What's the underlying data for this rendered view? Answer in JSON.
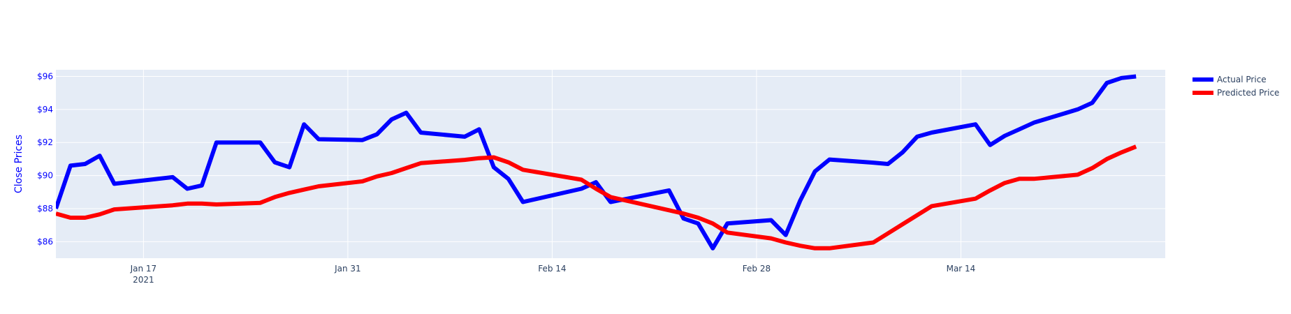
{
  "chart_data": {
    "type": "line",
    "ylabel": "Close Prices",
    "ylim": [
      85.0,
      96.4
    ],
    "x_range": [
      "2021-01-11",
      "2021-03-28"
    ],
    "x_ticks": [
      {
        "date": "2021-01-17",
        "label": "Jan 17",
        "sublabel": "2021"
      },
      {
        "date": "2021-01-31",
        "label": "Jan 31",
        "sublabel": ""
      },
      {
        "date": "2021-02-14",
        "label": "Feb 14",
        "sublabel": ""
      },
      {
        "date": "2021-02-28",
        "label": "Feb 28",
        "sublabel": ""
      },
      {
        "date": "2021-03-14",
        "label": "Mar 14",
        "sublabel": ""
      }
    ],
    "y_ticks": [
      {
        "value": 86,
        "label": "$86"
      },
      {
        "value": 88,
        "label": "$88"
      },
      {
        "value": 90,
        "label": "$90"
      },
      {
        "value": 92,
        "label": "$92"
      },
      {
        "value": 94,
        "label": "$94"
      },
      {
        "value": 96,
        "label": "$96"
      }
    ],
    "grid": true,
    "legend_position": "top-right",
    "series": [
      {
        "name": "Actual Price",
        "color": "#0000ff",
        "x": [
          "2021-01-11",
          "2021-01-12",
          "2021-01-13",
          "2021-01-14",
          "2021-01-15",
          "2021-01-19",
          "2021-01-20",
          "2021-01-21",
          "2021-01-22",
          "2021-01-25",
          "2021-01-26",
          "2021-01-27",
          "2021-01-28",
          "2021-01-29",
          "2021-02-01",
          "2021-02-02",
          "2021-02-03",
          "2021-02-04",
          "2021-02-05",
          "2021-02-08",
          "2021-02-09",
          "2021-02-10",
          "2021-02-11",
          "2021-02-12",
          "2021-02-16",
          "2021-02-17",
          "2021-02-18",
          "2021-02-22",
          "2021-02-23",
          "2021-02-24",
          "2021-02-25",
          "2021-02-26",
          "2021-03-01",
          "2021-03-02",
          "2021-03-03",
          "2021-03-04",
          "2021-03-05",
          "2021-03-08",
          "2021-03-09",
          "2021-03-10",
          "2021-03-11",
          "2021-03-12",
          "2021-03-15",
          "2021-03-16",
          "2021-03-17",
          "2021-03-18",
          "2021-03-19",
          "2021-03-22",
          "2021-03-23",
          "2021-03-24",
          "2021-03-25",
          "2021-03-26"
        ],
        "y": [
          88.0,
          90.6,
          90.7,
          91.2,
          89.5,
          89.9,
          89.2,
          89.4,
          92.0,
          92.0,
          90.8,
          90.5,
          93.1,
          92.2,
          92.15,
          92.5,
          93.4,
          93.8,
          92.6,
          92.35,
          92.8,
          90.5,
          89.8,
          88.4,
          89.2,
          89.6,
          88.4,
          89.1,
          87.4,
          87.1,
          85.6,
          87.1,
          87.3,
          86.4,
          88.5,
          90.25,
          90.97,
          90.78,
          90.7,
          91.4,
          92.35,
          92.6,
          93.1,
          91.85,
          92.4,
          92.8,
          93.2,
          94.0,
          94.4,
          95.6,
          95.9,
          96.0
        ]
      },
      {
        "name": "Predicted Price",
        "color": "#ff0000",
        "x": [
          "2021-01-11",
          "2021-01-12",
          "2021-01-13",
          "2021-01-14",
          "2021-01-15",
          "2021-01-19",
          "2021-01-20",
          "2021-01-21",
          "2021-01-22",
          "2021-01-25",
          "2021-01-26",
          "2021-01-27",
          "2021-01-28",
          "2021-01-29",
          "2021-02-01",
          "2021-02-02",
          "2021-02-03",
          "2021-02-04",
          "2021-02-05",
          "2021-02-08",
          "2021-02-09",
          "2021-02-10",
          "2021-02-11",
          "2021-02-12",
          "2021-02-16",
          "2021-02-17",
          "2021-02-18",
          "2021-02-22",
          "2021-02-23",
          "2021-02-24",
          "2021-02-25",
          "2021-02-26",
          "2021-03-01",
          "2021-03-02",
          "2021-03-03",
          "2021-03-04",
          "2021-03-05",
          "2021-03-08",
          "2021-03-09",
          "2021-03-10",
          "2021-03-11",
          "2021-03-12",
          "2021-03-15",
          "2021-03-16",
          "2021-03-17",
          "2021-03-18",
          "2021-03-19",
          "2021-03-22",
          "2021-03-23",
          "2021-03-24",
          "2021-03-25",
          "2021-03-26"
        ],
        "y": [
          87.7,
          87.45,
          87.45,
          87.65,
          87.95,
          88.2,
          88.3,
          88.3,
          88.25,
          88.35,
          88.7,
          88.95,
          89.15,
          89.35,
          89.65,
          89.95,
          90.15,
          90.45,
          90.75,
          90.95,
          91.05,
          91.1,
          90.8,
          90.35,
          89.75,
          89.2,
          88.7,
          87.9,
          87.7,
          87.45,
          87.1,
          86.55,
          86.2,
          85.95,
          85.75,
          85.6,
          85.6,
          85.95,
          86.5,
          87.05,
          87.6,
          88.15,
          88.6,
          89.1,
          89.55,
          89.8,
          89.8,
          90.05,
          90.45,
          91.0,
          91.4,
          91.75
        ]
      }
    ]
  }
}
